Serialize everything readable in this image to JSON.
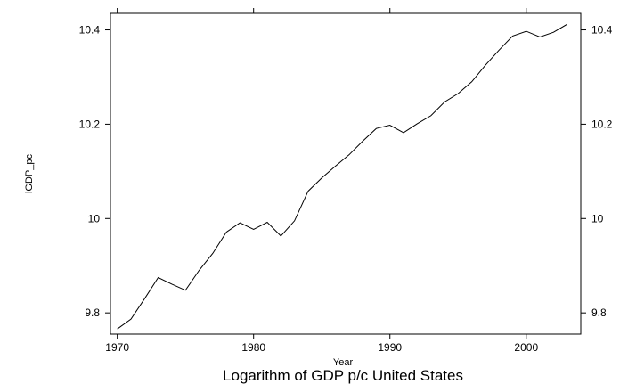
{
  "chart_data": {
    "type": "line",
    "title": "Logarithm of GDP p/c United States",
    "xlabel": "Year",
    "ylabel": "lGDP_pc",
    "xlim": [
      1969.5,
      2004
    ],
    "ylim": [
      9.755,
      10.435
    ],
    "xticks": [
      1970,
      1980,
      1990,
      2000
    ],
    "xtick_labels": [
      "1970",
      "1980",
      "1990",
      "2000"
    ],
    "yticks": [
      9.8,
      10.0,
      10.2,
      10.4
    ],
    "ytick_labels": [
      "9.8",
      "10",
      "10.2",
      "10.4"
    ],
    "grid": false,
    "series": [
      {
        "x": [
          1970,
          1971,
          1972,
          1973,
          1974,
          1975,
          1976,
          1977,
          1978,
          1979,
          1980,
          1981,
          1982,
          1983,
          1984,
          1985,
          1986,
          1987,
          1988,
          1989,
          1990,
          1991,
          1992,
          1993,
          1994,
          1995,
          1996,
          1997,
          1998,
          1999,
          2000,
          2001,
          2002,
          2003
        ],
        "values": [
          9.766,
          9.787,
          9.83,
          9.875,
          9.861,
          9.848,
          9.89,
          9.926,
          9.971,
          9.991,
          9.977,
          9.992,
          9.963,
          9.995,
          10.058,
          10.086,
          10.111,
          10.135,
          10.164,
          10.191,
          10.198,
          10.182,
          10.201,
          10.218,
          10.247,
          10.265,
          10.29,
          10.325,
          10.357,
          10.387,
          10.397,
          10.385,
          10.395,
          10.412
        ]
      }
    ]
  }
}
